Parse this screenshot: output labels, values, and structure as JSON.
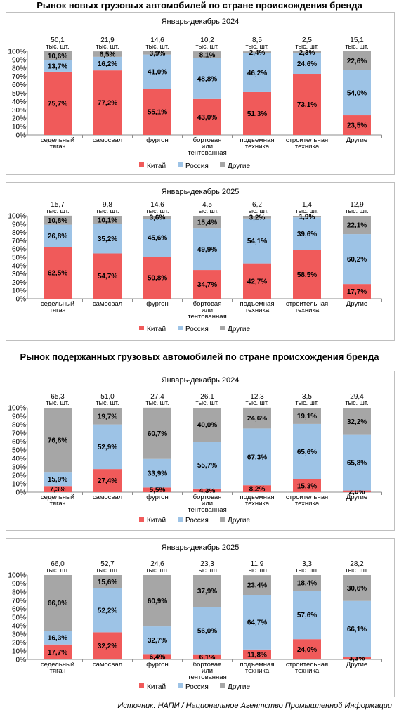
{
  "titles": {
    "new": "Рынок новых грузовых автомобилей по стране происхождения бренда",
    "used": "Рынок подержанных грузовых автомобилей по стране происхождения бренда"
  },
  "source": "Источник: НАПИ / Национальное Агентство Промышленной Информации",
  "colors": {
    "china": "#f05a5a",
    "russia": "#9dc3e6",
    "other": "#a6a6a6"
  },
  "chart_data": [
    {
      "type": "bar",
      "stacked": true,
      "title": "Январь-декабрь 2024",
      "categories": [
        [
          "седельный",
          "тягач"
        ],
        [
          "самосвал"
        ],
        [
          "фургон"
        ],
        [
          "бортовая",
          "или",
          "тентованная"
        ],
        [
          "подъемная",
          "техника"
        ],
        [
          "строительная",
          "техника"
        ],
        [
          "Другие"
        ]
      ],
      "totals": [
        [
          "50,1",
          "тыс. шт."
        ],
        [
          "21,9",
          "тыс. шт."
        ],
        [
          "14,6",
          "тыс. шт."
        ],
        [
          "10,2",
          "тыс. шт."
        ],
        [
          "8,5",
          "тыс. шт."
        ],
        [
          "2,5",
          "тыс. шт."
        ],
        [
          "15,1",
          "тыс. шт."
        ]
      ],
      "yticks": [
        "0%",
        "10%",
        "20%",
        "30%",
        "40%",
        "50%",
        "60%",
        "70%",
        "80%",
        "90%",
        "100%"
      ],
      "ylim": [
        0,
        100
      ],
      "legend_position": "bottom",
      "series": [
        {
          "name": "Китай",
          "values": [
            75.7,
            77.2,
            55.1,
            43.0,
            51.3,
            73.1,
            23.5
          ],
          "labels": [
            "75,7%",
            "77,2%",
            "55,1%",
            "43,0%",
            "51,3%",
            "73,1%",
            "23,5%"
          ]
        },
        {
          "name": "Россия",
          "values": [
            13.7,
            16.2,
            41.0,
            48.8,
            46.2,
            24.6,
            54.0
          ],
          "labels": [
            "13,7%",
            "16,2%",
            "41,0%",
            "48,8%",
            "46,2%",
            "24,6%",
            "54,0%"
          ]
        },
        {
          "name": "Другие",
          "values": [
            10.6,
            6.5,
            3.9,
            8.1,
            2.4,
            2.3,
            22.6
          ],
          "labels": [
            "10,6%",
            "6,5%",
            "3,9%",
            "8,1%",
            "2,4%",
            "2,3%",
            "22,6%"
          ]
        }
      ]
    },
    {
      "type": "bar",
      "stacked": true,
      "title": "Январь-декабрь 2025",
      "categories": [
        [
          "седельный",
          "тягач"
        ],
        [
          "самосвал"
        ],
        [
          "фургон"
        ],
        [
          "бортовая",
          "или",
          "тентованная"
        ],
        [
          "подъемная",
          "техника"
        ],
        [
          "строительная",
          "техника"
        ],
        [
          "Другие"
        ]
      ],
      "totals": [
        [
          "15,7",
          "тыс. шт."
        ],
        [
          "9,8",
          "тыс. шт."
        ],
        [
          "14,6",
          "тыс. шт."
        ],
        [
          "4,5",
          "тыс. шт."
        ],
        [
          "6,2",
          "тыс. шт."
        ],
        [
          "1,4",
          "тыс. шт."
        ],
        [
          "12,9",
          "тыс. шт."
        ]
      ],
      "yticks": [
        "0%",
        "10%",
        "20%",
        "30%",
        "40%",
        "50%",
        "60%",
        "70%",
        "80%",
        "90%",
        "100%"
      ],
      "ylim": [
        0,
        100
      ],
      "legend_position": "bottom",
      "series": [
        {
          "name": "Китай",
          "values": [
            62.5,
            54.7,
            50.8,
            34.7,
            42.7,
            58.5,
            17.7
          ],
          "labels": [
            "62,5%",
            "54,7%",
            "50,8%",
            "34,7%",
            "42,7%",
            "58,5%",
            "17,7%"
          ]
        },
        {
          "name": "Россия",
          "values": [
            26.8,
            35.2,
            45.6,
            49.9,
            54.1,
            39.6,
            60.2
          ],
          "labels": [
            "26,8%",
            "35,2%",
            "45,6%",
            "49,9%",
            "54,1%",
            "39,6%",
            "60,2%"
          ]
        },
        {
          "name": "Другие",
          "values": [
            10.8,
            10.1,
            3.6,
            15.4,
            3.2,
            1.9,
            22.1
          ],
          "labels": [
            "10,8%",
            "10,1%",
            "3,6%",
            "15,4%",
            "3,2%",
            "1,9%",
            "22,1%"
          ]
        }
      ]
    },
    {
      "type": "bar",
      "stacked": true,
      "title": "Январь-декабрь 2024",
      "categories": [
        [
          "седельный",
          "тягач"
        ],
        [
          "самосвал"
        ],
        [
          "фургон"
        ],
        [
          "бортовая",
          "или",
          "тентованная"
        ],
        [
          "подъемная",
          "техника"
        ],
        [
          "строительная",
          "техника"
        ],
        [
          "Другие"
        ]
      ],
      "totals": [
        [
          "65,3",
          "тыс. шт."
        ],
        [
          "51,0",
          "тыс. шт."
        ],
        [
          "27,4",
          "тыс. шт."
        ],
        [
          "26,1",
          "тыс. шт."
        ],
        [
          "12,3",
          "тыс. шт."
        ],
        [
          "3,5",
          "тыс. шт."
        ],
        [
          "29,4",
          "тыс. шт."
        ]
      ],
      "yticks": [
        "0%",
        "10%",
        "20%",
        "30%",
        "40%",
        "50%",
        "60%",
        "70%",
        "80%",
        "90%",
        "100%"
      ],
      "ylim": [
        0,
        100
      ],
      "legend_position": "bottom",
      "series": [
        {
          "name": "Китай",
          "values": [
            7.3,
            27.4,
            5.5,
            4.3,
            8.2,
            15.3,
            2.0
          ],
          "labels": [
            "7,3%",
            "27,4%",
            "5,5%",
            "4,3%",
            "8,2%",
            "15,3%",
            "2,0%"
          ]
        },
        {
          "name": "Россия",
          "values": [
            15.9,
            52.9,
            33.9,
            55.7,
            67.3,
            65.6,
            65.8
          ],
          "labels": [
            "15,9%",
            "52,9%",
            "33,9%",
            "55,7%",
            "67,3%",
            "65,6%",
            "65,8%"
          ]
        },
        {
          "name": "Другие",
          "values": [
            76.8,
            19.7,
            60.7,
            40.0,
            24.6,
            19.1,
            32.2
          ],
          "labels": [
            "76,8%",
            "19,7%",
            "60,7%",
            "40,0%",
            "24,6%",
            "19,1%",
            "32,2%"
          ]
        }
      ]
    },
    {
      "type": "bar",
      "stacked": true,
      "title": "Январь-декабрь 2025",
      "categories": [
        [
          "седельный",
          "тягач"
        ],
        [
          "самосвал"
        ],
        [
          "фургон"
        ],
        [
          "бортовая",
          "или",
          "тентованная"
        ],
        [
          "подъемная",
          "техника"
        ],
        [
          "строительная",
          "техника"
        ],
        [
          "Другие"
        ]
      ],
      "totals": [
        [
          "66,0",
          "тыс. шт."
        ],
        [
          "52,7",
          "тыс. шт."
        ],
        [
          "24,6",
          "тыс. шт."
        ],
        [
          "23,3",
          "тыс. шт."
        ],
        [
          "11,9",
          "тыс. шт."
        ],
        [
          "3,3",
          "тыс. шт."
        ],
        [
          "28,2",
          "тыс. шт."
        ]
      ],
      "yticks": [
        "0%",
        "10%",
        "20%",
        "30%",
        "40%",
        "50%",
        "60%",
        "70%",
        "80%",
        "90%",
        "100%"
      ],
      "ylim": [
        0,
        100
      ],
      "legend_position": "bottom",
      "series": [
        {
          "name": "Китай",
          "values": [
            17.7,
            32.2,
            6.4,
            6.1,
            11.8,
            24.0,
            3.3
          ],
          "labels": [
            "17,7%",
            "32,2%",
            "6,4%",
            "6,1%",
            "11,8%",
            "24,0%",
            "3,3%"
          ]
        },
        {
          "name": "Россия",
          "values": [
            16.3,
            52.2,
            32.7,
            56.0,
            64.7,
            57.6,
            66.1
          ],
          "labels": [
            "16,3%",
            "52,2%",
            "32,7%",
            "56,0%",
            "64,7%",
            "57,6%",
            "66,1%"
          ]
        },
        {
          "name": "Другие",
          "values": [
            66.0,
            15.6,
            60.9,
            37.9,
            23.4,
            18.4,
            30.6
          ],
          "labels": [
            "66,0%",
            "15,6%",
            "60,9%",
            "37,9%",
            "23,4%",
            "18,4%",
            "30,6%"
          ]
        }
      ]
    }
  ]
}
